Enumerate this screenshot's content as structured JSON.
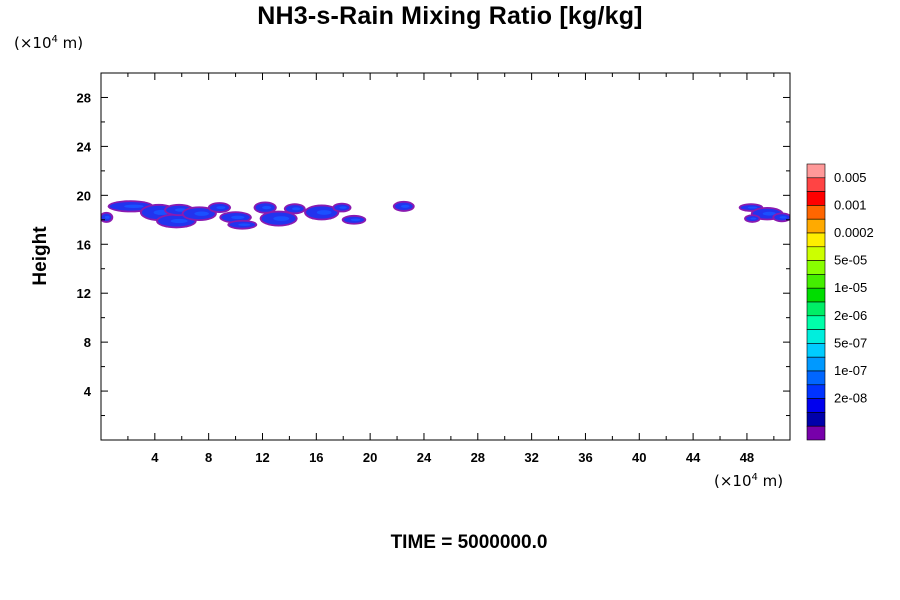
{
  "chart_data": {
    "type": "heatmap",
    "title": "NH3-s-Rain Mixing Ratio [kg/kg]",
    "ylabel": "Height",
    "y_unit": {
      "prefix": "(×10",
      "exp": "4",
      "suffix": " m)"
    },
    "x_unit": {
      "prefix": "(×10",
      "exp": "4",
      "suffix": " m)"
    },
    "xlim": [
      0,
      51.2
    ],
    "ylim": [
      0,
      30
    ],
    "x_ticks": [
      4,
      8,
      12,
      16,
      20,
      24,
      28,
      32,
      36,
      40,
      44,
      48
    ],
    "y_ticks": [
      4,
      8,
      12,
      16,
      20,
      24,
      28
    ],
    "time_label": "TIME = 5000000.0",
    "colorbar": {
      "labels": [
        "0.005",
        "0.001",
        "0.0002",
        "5e-05",
        "1e-05",
        "2e-06",
        "5e-07",
        "1e-07",
        "2e-08"
      ],
      "colors": [
        "#ff9999",
        "#ff4444",
        "#ff0000",
        "#ff6600",
        "#ffaa00",
        "#ffee00",
        "#ccff00",
        "#88ff00",
        "#44ee00",
        "#00dd00",
        "#00ee66",
        "#00ffaa",
        "#00eedd",
        "#00ccff",
        "#0099ff",
        "#0066ff",
        "#0033ff",
        "#0000ee",
        "#0000aa",
        "#7700aa"
      ]
    },
    "fill_colors": {
      "edge": "#8a1ab0",
      "core": "#2233ee",
      "inner": "#1a50ff"
    },
    "cells": [
      {
        "x": 0.4,
        "y": 18.2,
        "w": 0.8,
        "h": 0.7
      },
      {
        "x": 2.2,
        "y": 19.1,
        "w": 3.2,
        "h": 0.8
      },
      {
        "x": 4.3,
        "y": 18.6,
        "w": 2.6,
        "h": 1.2
      },
      {
        "x": 5.6,
        "y": 17.9,
        "w": 2.8,
        "h": 1.0
      },
      {
        "x": 5.8,
        "y": 18.8,
        "w": 2.0,
        "h": 0.8
      },
      {
        "x": 7.3,
        "y": 18.5,
        "w": 2.4,
        "h": 1.0
      },
      {
        "x": 8.8,
        "y": 19.0,
        "w": 1.5,
        "h": 0.7
      },
      {
        "x": 10.0,
        "y": 18.2,
        "w": 2.2,
        "h": 0.8
      },
      {
        "x": 10.5,
        "y": 17.6,
        "w": 2.0,
        "h": 0.6
      },
      {
        "x": 12.2,
        "y": 19.0,
        "w": 1.5,
        "h": 0.8
      },
      {
        "x": 13.2,
        "y": 18.1,
        "w": 2.6,
        "h": 1.1
      },
      {
        "x": 14.4,
        "y": 18.9,
        "w": 1.4,
        "h": 0.7
      },
      {
        "x": 16.4,
        "y": 18.6,
        "w": 2.4,
        "h": 1.1
      },
      {
        "x": 17.9,
        "y": 19.0,
        "w": 1.2,
        "h": 0.6
      },
      {
        "x": 18.8,
        "y": 18.0,
        "w": 1.6,
        "h": 0.6
      },
      {
        "x": 22.5,
        "y": 19.1,
        "w": 1.4,
        "h": 0.7
      },
      {
        "x": 48.3,
        "y": 19.0,
        "w": 1.6,
        "h": 0.5
      },
      {
        "x": 49.5,
        "y": 18.5,
        "w": 2.2,
        "h": 0.9
      },
      {
        "x": 48.4,
        "y": 18.1,
        "w": 1.0,
        "h": 0.5
      },
      {
        "x": 50.6,
        "y": 18.2,
        "w": 1.2,
        "h": 0.6
      }
    ]
  }
}
